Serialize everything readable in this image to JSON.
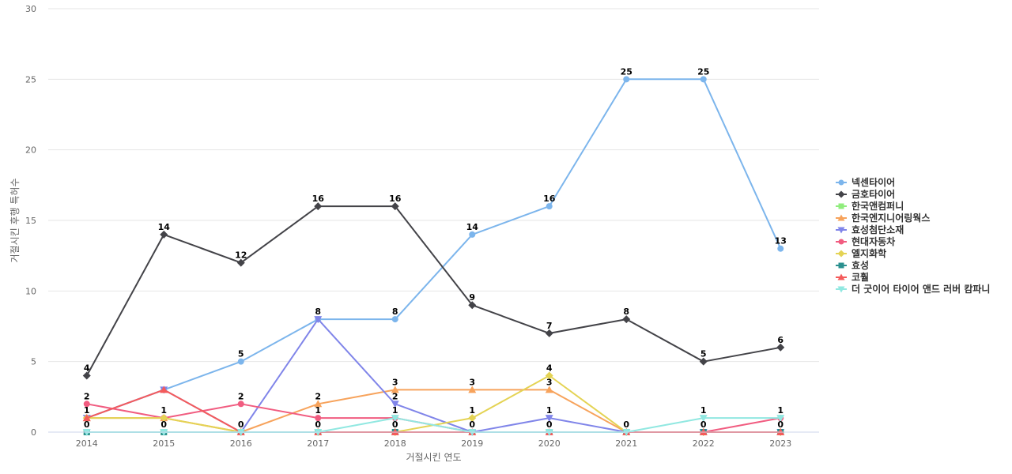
{
  "chart_data": {
    "type": "line",
    "xlabel": "거절시킨 연도",
    "ylabel": "거절시킨 후행 특허수",
    "ylim": [
      0,
      30
    ],
    "yticks": [
      0,
      5,
      10,
      15,
      20,
      25,
      30
    ],
    "grid": true,
    "legend_position": "right",
    "categories": [
      "2014",
      "2015",
      "2016",
      "2017",
      "2018",
      "2019",
      "2020",
      "2021",
      "2022",
      "2023"
    ],
    "series": [
      {
        "name": "넥센타이어",
        "color": "#7cb5ec",
        "marker": "circle",
        "values": [
          1,
          3,
          5,
          8,
          8,
          14,
          16,
          25,
          25,
          13
        ],
        "label_indices": [
          2,
          3,
          4,
          5,
          6,
          7,
          8,
          9
        ]
      },
      {
        "name": "금호타이어",
        "color": "#434348",
        "marker": "diamond",
        "values": [
          4,
          14,
          12,
          16,
          16,
          9,
          7,
          8,
          5,
          6
        ],
        "label_indices": [
          0,
          1,
          2,
          3,
          4,
          5,
          6,
          7,
          8,
          9
        ]
      },
      {
        "name": "한국앤컴퍼니",
        "color": "#90ed7d",
        "marker": "square",
        "values": [
          0,
          0,
          0,
          0,
          0,
          0,
          0,
          0,
          0,
          0
        ],
        "label_indices": []
      },
      {
        "name": "한국엔지니어링웍스",
        "color": "#f7a35c",
        "marker": "triangle",
        "values": [
          1,
          1,
          0,
          2,
          3,
          3,
          3,
          0,
          0,
          0
        ],
        "label_indices": [
          3,
          4,
          5,
          6
        ]
      },
      {
        "name": "효성첨단소재",
        "color": "#8085e9",
        "marker": "triangle-down",
        "values": [
          1,
          3,
          0,
          8,
          2,
          0,
          1,
          0,
          0,
          0
        ],
        "label_indices": [
          4,
          6
        ]
      },
      {
        "name": "현대자동차",
        "color": "#f15c80",
        "marker": "circle",
        "values": [
          2,
          1,
          2,
          1,
          1,
          0,
          0,
          0,
          0,
          1
        ],
        "label_indices": [
          0,
          1,
          2,
          3,
          4
        ]
      },
      {
        "name": "엘지화학",
        "color": "#e4d354",
        "marker": "diamond",
        "values": [
          1,
          1,
          0,
          0,
          0,
          1,
          4,
          0,
          0,
          0
        ],
        "label_indices": [
          0,
          5,
          6
        ]
      },
      {
        "name": "효성",
        "color": "#2b908f",
        "marker": "square",
        "values": [
          0,
          0,
          0,
          0,
          0,
          0,
          0,
          0,
          0,
          0
        ],
        "label_indices": [
          0,
          1,
          2,
          3,
          4,
          5,
          6,
          7,
          8,
          9
        ]
      },
      {
        "name": "코훨",
        "color": "#f45b5b",
        "marker": "triangle",
        "values": [
          1,
          3,
          0,
          0,
          0,
          0,
          0,
          0,
          0,
          0
        ],
        "label_indices": []
      },
      {
        "name": "더 굿이어 타이어 앤드 러버 캄파니",
        "color": "#91e8e1",
        "marker": "triangle-down",
        "values": [
          0,
          0,
          0,
          0,
          1,
          0,
          0,
          0,
          1,
          1
        ],
        "label_indices": [
          8,
          9
        ]
      }
    ]
  }
}
